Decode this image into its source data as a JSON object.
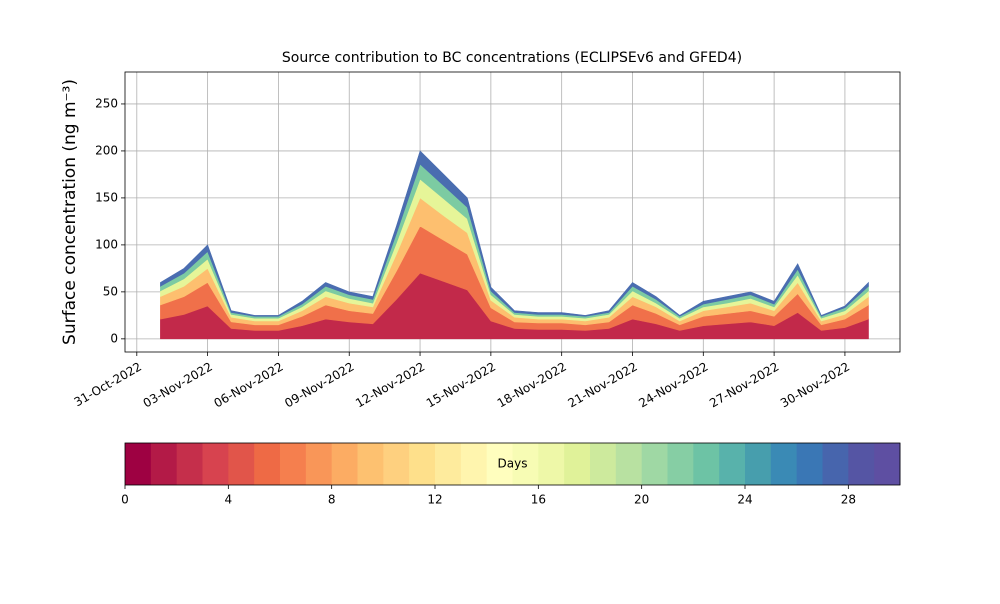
{
  "chart_data": {
    "type": "stacked_area",
    "title": "Source contribution to BC concentrations (ECLIPSEv6 and GFED4)",
    "ylabel": "Surface concentration (ng m⁻³)",
    "x": [
      "2022-11-01",
      "2022-11-02",
      "2022-11-03",
      "2022-11-04",
      "2022-11-05",
      "2022-11-06",
      "2022-11-07",
      "2022-11-08",
      "2022-11-09",
      "2022-11-10",
      "2022-11-11",
      "2022-11-12",
      "2022-11-13",
      "2022-11-14",
      "2022-11-15",
      "2022-11-16",
      "2022-11-17",
      "2022-11-18",
      "2022-11-19",
      "2022-11-20",
      "2022-11-21",
      "2022-11-22",
      "2022-11-23",
      "2022-11-24",
      "2022-11-25",
      "2022-11-26",
      "2022-11-27",
      "2022-11-28",
      "2022-11-29",
      "2022-11-30",
      "2022-12-01"
    ],
    "series": [
      {
        "color": "#c2294a",
        "values": [
          21,
          26,
          35,
          11,
          9,
          9,
          14,
          21,
          18,
          16,
          42,
          70,
          61,
          52,
          19,
          11,
          10,
          10,
          9,
          11,
          21,
          16,
          9,
          14,
          16,
          18,
          14,
          28,
          9,
          12,
          21
        ]
      },
      {
        "color": "#f0704a",
        "values": [
          15,
          19,
          25,
          7,
          6,
          6,
          10,
          15,
          12,
          11,
          30,
          50,
          44,
          38,
          14,
          7,
          7,
          7,
          6,
          7,
          15,
          11,
          6,
          10,
          11,
          12,
          10,
          20,
          6,
          9,
          15
        ]
      },
      {
        "color": "#fdbf6f",
        "values": [
          9,
          11,
          15,
          5,
          4,
          4,
          6,
          9,
          8,
          7,
          18,
          30,
          26,
          23,
          8,
          5,
          4,
          4,
          4,
          5,
          9,
          7,
          4,
          6,
          7,
          8,
          6,
          12,
          4,
          5,
          9
        ]
      },
      {
        "color": "#e6f598",
        "values": [
          6,
          8,
          10,
          3,
          3,
          3,
          4,
          6,
          5,
          4,
          12,
          20,
          18,
          15,
          6,
          3,
          3,
          3,
          3,
          3,
          6,
          4,
          3,
          4,
          4,
          5,
          4,
          8,
          3,
          4,
          6
        ]
      },
      {
        "color": "#7ccba2",
        "values": [
          5,
          6,
          8,
          2,
          2,
          2,
          3,
          5,
          4,
          4,
          10,
          16,
          14,
          12,
          4,
          2,
          2,
          2,
          2,
          2,
          5,
          4,
          2,
          3,
          4,
          4,
          3,
          6,
          2,
          3,
          5
        ]
      },
      {
        "color": "#4a6db0",
        "values": [
          4,
          5,
          7,
          2,
          1,
          1,
          3,
          4,
          3,
          3,
          8,
          14,
          12,
          10,
          4,
          2,
          2,
          2,
          1,
          2,
          4,
          3,
          1,
          3,
          3,
          3,
          3,
          6,
          1,
          2,
          4
        ]
      }
    ],
    "xlim": [
      "2022-10-30T12:00",
      "2022-12-02T08:00"
    ],
    "xticks": [
      {
        "value": "2022-10-31",
        "label": "31-Oct-2022"
      },
      {
        "value": "2022-11-03",
        "label": "03-Nov-2022"
      },
      {
        "value": "2022-11-06",
        "label": "06-Nov-2022"
      },
      {
        "value": "2022-11-09",
        "label": "09-Nov-2022"
      },
      {
        "value": "2022-11-12",
        "label": "12-Nov-2022"
      },
      {
        "value": "2022-11-15",
        "label": "15-Nov-2022"
      },
      {
        "value": "2022-11-18",
        "label": "18-Nov-2022"
      },
      {
        "value": "2022-11-21",
        "label": "21-Nov-2022"
      },
      {
        "value": "2022-11-24",
        "label": "24-Nov-2022"
      },
      {
        "value": "2022-11-27",
        "label": "27-Nov-2022"
      },
      {
        "value": "2022-11-30",
        "label": "30-Nov-2022"
      }
    ],
    "ylim": [
      -14,
      284
    ],
    "yticks": [
      0,
      50,
      100,
      150,
      200,
      250
    ],
    "grid": true,
    "colorbar": {
      "label": "Days",
      "lim": [
        0,
        30
      ],
      "ticks": [
        0,
        4,
        8,
        12,
        16,
        20,
        24,
        28
      ],
      "colors": [
        "#9e0142",
        "#b31a47",
        "#c52f4b",
        "#d7434f",
        "#e1554a",
        "#ee6a45",
        "#f57f4e",
        "#f99658",
        "#fcac63",
        "#fdc170",
        "#fed07f",
        "#fee08b",
        "#feeb9d",
        "#fff5ae",
        "#fffebe",
        "#f7fcb4",
        "#eef8a8",
        "#e0f299",
        "#cdea9d",
        "#b8e1a1",
        "#9fd8a4",
        "#86cea4",
        "#6dc3a5",
        "#58b2ab",
        "#479ead",
        "#3a8ab5",
        "#3a77b5",
        "#4765ad",
        "#5555a4",
        "#5e4fa2"
      ]
    }
  }
}
